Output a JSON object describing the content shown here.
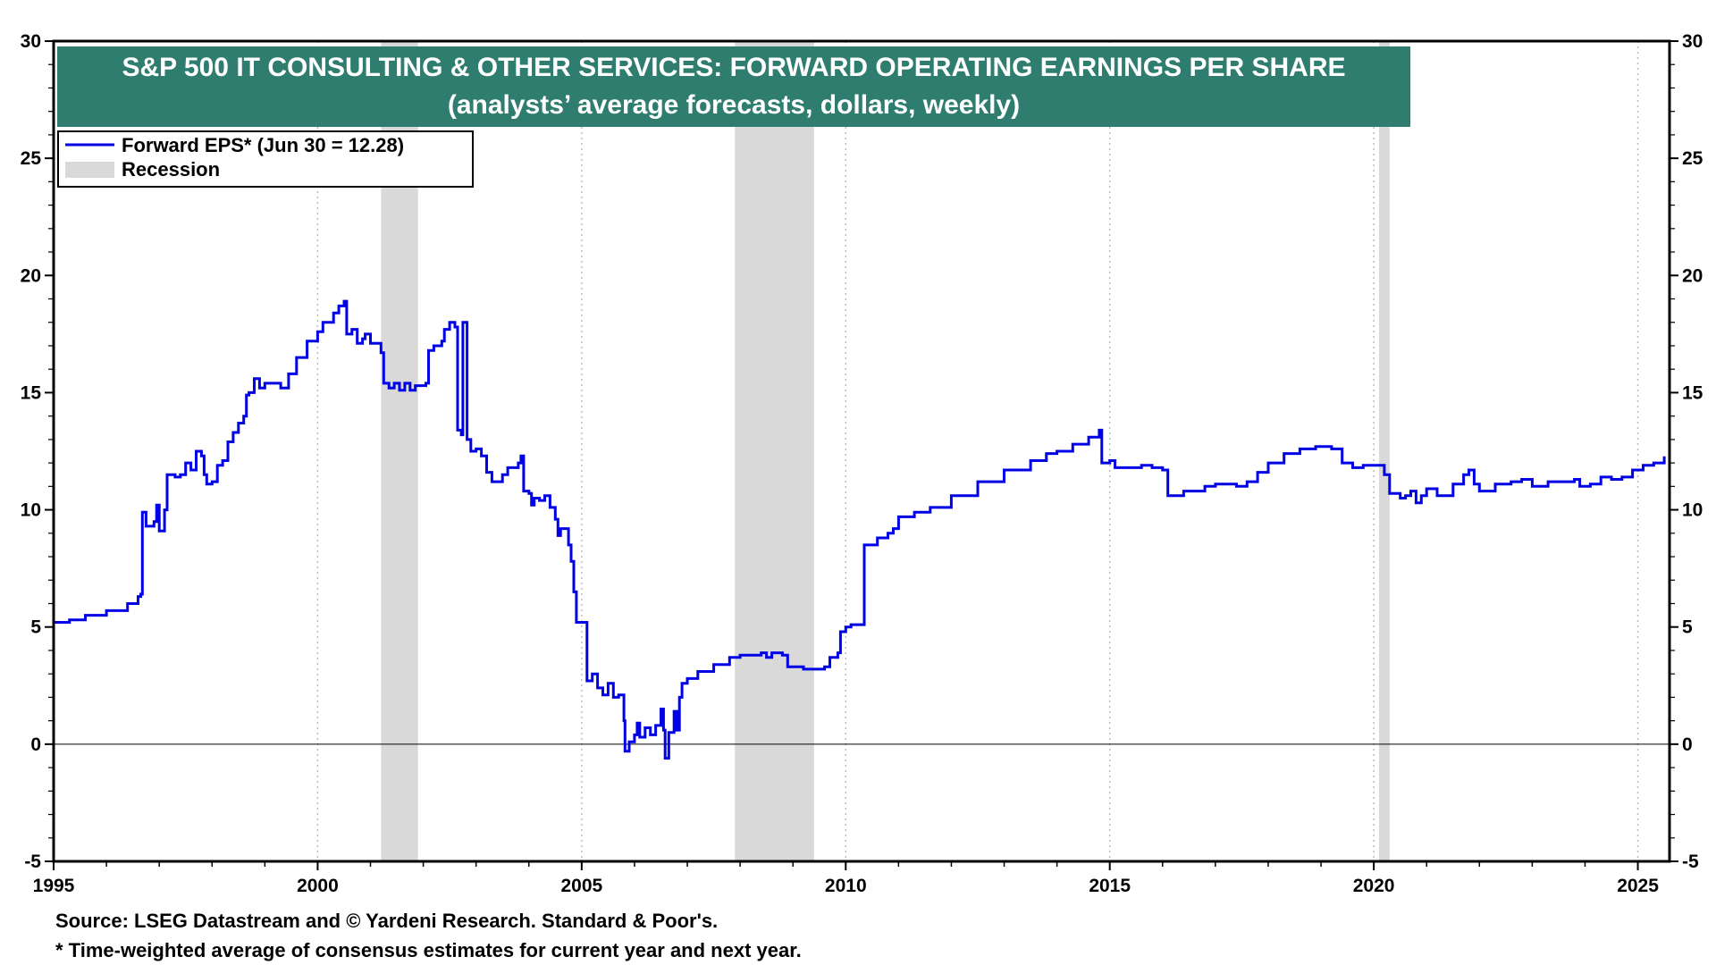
{
  "colors": {
    "title_background": "#2e7d6f",
    "title_text": "#ffffff",
    "series": "#0000e6",
    "recession": "#d9d9d9",
    "grid": "#bbbbbb"
  },
  "footnotes": {
    "source": "Source: LSEG Datastream and © Yardeni Research. Standard & Poor's.",
    "note": "* Time-weighted average of consensus estimates for current year and next year."
  },
  "chart_data": {
    "type": "line",
    "title": "S&P 500 IT CONSULTING & OTHER SERVICES: FORWARD OPERATING EARNINGS PER SHARE",
    "subtitle": "(analysts’ average forecasts, dollars, weekly)",
    "xlabel": "",
    "ylabel": "",
    "xlim": [
      1995,
      2025.6
    ],
    "ylim": [
      -5,
      30
    ],
    "x_ticks": [
      1995,
      2000,
      2005,
      2010,
      2015,
      2020,
      2025
    ],
    "y_ticks": [
      -5,
      0,
      5,
      10,
      15,
      20,
      25,
      30
    ],
    "grid": "vertical dotted",
    "reference_line": 0,
    "legend": {
      "placement": "top-left",
      "entries": [
        {
          "label": "Forward EPS* (Jun 30 = 12.28)",
          "kind": "line"
        },
        {
          "label": "Recession",
          "kind": "band"
        }
      ]
    },
    "recessions": [
      [
        2001.2,
        2001.9
      ],
      [
        2007.9,
        2009.4
      ],
      [
        2020.1,
        2020.3
      ]
    ],
    "series": [
      {
        "name": "Forward EPS* (Jun 30 = 12.28)",
        "points": [
          [
            1995.0,
            5.2
          ],
          [
            1995.3,
            5.3
          ],
          [
            1995.6,
            5.5
          ],
          [
            1996.0,
            5.7
          ],
          [
            1996.4,
            6.0
          ],
          [
            1996.6,
            6.3
          ],
          [
            1996.65,
            6.4
          ],
          [
            1996.68,
            9.9
          ],
          [
            1996.75,
            9.3
          ],
          [
            1996.9,
            9.5
          ],
          [
            1996.95,
            10.2
          ],
          [
            1997.0,
            9.1
          ],
          [
            1997.05,
            9.1
          ],
          [
            1997.1,
            10.0
          ],
          [
            1997.15,
            11.5
          ],
          [
            1997.3,
            11.4
          ],
          [
            1997.4,
            11.5
          ],
          [
            1997.5,
            12.0
          ],
          [
            1997.6,
            11.7
          ],
          [
            1997.7,
            12.5
          ],
          [
            1997.8,
            12.3
          ],
          [
            1997.85,
            11.5
          ],
          [
            1997.9,
            11.1
          ],
          [
            1998.0,
            11.2
          ],
          [
            1998.1,
            11.9
          ],
          [
            1998.2,
            12.1
          ],
          [
            1998.3,
            12.9
          ],
          [
            1998.4,
            13.3
          ],
          [
            1998.5,
            13.7
          ],
          [
            1998.6,
            14.0
          ],
          [
            1998.65,
            14.9
          ],
          [
            1998.7,
            15.0
          ],
          [
            1998.8,
            15.6
          ],
          [
            1998.9,
            15.2
          ],
          [
            1999.0,
            15.4
          ],
          [
            1999.2,
            15.4
          ],
          [
            1999.3,
            15.2
          ],
          [
            1999.45,
            15.8
          ],
          [
            1999.6,
            16.5
          ],
          [
            1999.8,
            17.2
          ],
          [
            2000.0,
            17.6
          ],
          [
            2000.1,
            18.0
          ],
          [
            2000.3,
            18.4
          ],
          [
            2000.4,
            18.7
          ],
          [
            2000.5,
            18.9
          ],
          [
            2000.55,
            17.5
          ],
          [
            2000.65,
            17.7
          ],
          [
            2000.75,
            17.1
          ],
          [
            2000.85,
            17.3
          ],
          [
            2000.9,
            17.5
          ],
          [
            2001.0,
            17.1
          ],
          [
            2001.2,
            16.7
          ],
          [
            2001.25,
            15.4
          ],
          [
            2001.35,
            15.2
          ],
          [
            2001.45,
            15.4
          ],
          [
            2001.55,
            15.1
          ],
          [
            2001.65,
            15.4
          ],
          [
            2001.75,
            15.1
          ],
          [
            2001.85,
            15.3
          ],
          [
            2002.0,
            15.3
          ],
          [
            2002.05,
            15.4
          ],
          [
            2002.1,
            16.8
          ],
          [
            2002.2,
            17.0
          ],
          [
            2002.35,
            17.2
          ],
          [
            2002.4,
            17.7
          ],
          [
            2002.5,
            18.0
          ],
          [
            2002.6,
            17.8
          ],
          [
            2002.65,
            13.4
          ],
          [
            2002.72,
            13.2
          ],
          [
            2002.75,
            18.0
          ],
          [
            2002.8,
            18.0
          ],
          [
            2002.83,
            13.0
          ],
          [
            2002.9,
            12.5
          ],
          [
            2003.0,
            12.6
          ],
          [
            2003.1,
            12.3
          ],
          [
            2003.2,
            11.6
          ],
          [
            2003.3,
            11.2
          ],
          [
            2003.5,
            11.5
          ],
          [
            2003.6,
            11.8
          ],
          [
            2003.8,
            12.0
          ],
          [
            2003.85,
            12.3
          ],
          [
            2003.9,
            10.8
          ],
          [
            2004.0,
            10.7
          ],
          [
            2004.05,
            10.2
          ],
          [
            2004.1,
            10.5
          ],
          [
            2004.2,
            10.4
          ],
          [
            2004.3,
            10.6
          ],
          [
            2004.4,
            10.1
          ],
          [
            2004.5,
            9.6
          ],
          [
            2004.55,
            8.9
          ],
          [
            2004.6,
            9.2
          ],
          [
            2004.75,
            8.5
          ],
          [
            2004.8,
            7.8
          ],
          [
            2004.85,
            6.5
          ],
          [
            2004.9,
            5.2
          ],
          [
            2005.05,
            5.2
          ],
          [
            2005.1,
            2.7
          ],
          [
            2005.2,
            3.0
          ],
          [
            2005.3,
            2.4
          ],
          [
            2005.4,
            2.1
          ],
          [
            2005.5,
            2.6
          ],
          [
            2005.6,
            2.0
          ],
          [
            2005.7,
            2.1
          ],
          [
            2005.8,
            1.0
          ],
          [
            2005.82,
            -0.3
          ],
          [
            2005.9,
            0.1
          ],
          [
            2006.0,
            0.4
          ],
          [
            2006.05,
            0.9
          ],
          [
            2006.1,
            0.3
          ],
          [
            2006.2,
            0.7
          ],
          [
            2006.3,
            0.4
          ],
          [
            2006.4,
            0.8
          ],
          [
            2006.5,
            1.5
          ],
          [
            2006.55,
            0.6
          ],
          [
            2006.58,
            -0.6
          ],
          [
            2006.65,
            0.5
          ],
          [
            2006.75,
            1.4
          ],
          [
            2006.8,
            0.6
          ],
          [
            2006.85,
            2.0
          ],
          [
            2006.9,
            2.6
          ],
          [
            2007.0,
            2.8
          ],
          [
            2007.2,
            3.1
          ],
          [
            2007.5,
            3.4
          ],
          [
            2007.8,
            3.7
          ],
          [
            2008.0,
            3.8
          ],
          [
            2008.2,
            3.8
          ],
          [
            2008.4,
            3.9
          ],
          [
            2008.5,
            3.7
          ],
          [
            2008.6,
            3.9
          ],
          [
            2008.8,
            3.8
          ],
          [
            2008.9,
            3.3
          ],
          [
            2009.1,
            3.3
          ],
          [
            2009.2,
            3.2
          ],
          [
            2009.6,
            3.3
          ],
          [
            2009.7,
            3.7
          ],
          [
            2009.85,
            3.9
          ],
          [
            2009.9,
            4.8
          ],
          [
            2010.0,
            5.0
          ],
          [
            2010.1,
            5.1
          ],
          [
            2010.3,
            5.1
          ],
          [
            2010.35,
            8.5
          ],
          [
            2010.6,
            8.8
          ],
          [
            2010.8,
            9.0
          ],
          [
            2010.9,
            9.2
          ],
          [
            2011.0,
            9.7
          ],
          [
            2011.3,
            9.9
          ],
          [
            2011.6,
            10.1
          ],
          [
            2012.0,
            10.6
          ],
          [
            2012.5,
            11.2
          ],
          [
            2013.0,
            11.7
          ],
          [
            2013.5,
            12.1
          ],
          [
            2013.8,
            12.4
          ],
          [
            2014.0,
            12.5
          ],
          [
            2014.3,
            12.8
          ],
          [
            2014.6,
            13.1
          ],
          [
            2014.8,
            13.4
          ],
          [
            2014.85,
            12.0
          ],
          [
            2015.0,
            12.1
          ],
          [
            2015.1,
            11.8
          ],
          [
            2015.4,
            11.8
          ],
          [
            2015.6,
            11.9
          ],
          [
            2015.8,
            11.8
          ],
          [
            2016.0,
            11.7
          ],
          [
            2016.1,
            10.6
          ],
          [
            2016.4,
            10.8
          ],
          [
            2016.8,
            11.0
          ],
          [
            2017.0,
            11.1
          ],
          [
            2017.4,
            11.0
          ],
          [
            2017.6,
            11.2
          ],
          [
            2017.8,
            11.6
          ],
          [
            2018.0,
            12.0
          ],
          [
            2018.3,
            12.4
          ],
          [
            2018.6,
            12.6
          ],
          [
            2018.9,
            12.7
          ],
          [
            2019.2,
            12.6
          ],
          [
            2019.4,
            12.0
          ],
          [
            2019.6,
            11.8
          ],
          [
            2019.8,
            11.9
          ],
          [
            2020.1,
            11.9
          ],
          [
            2020.2,
            11.5
          ],
          [
            2020.3,
            10.7
          ],
          [
            2020.5,
            10.5
          ],
          [
            2020.6,
            10.6
          ],
          [
            2020.7,
            10.8
          ],
          [
            2020.8,
            10.3
          ],
          [
            2020.9,
            10.6
          ],
          [
            2021.0,
            10.9
          ],
          [
            2021.2,
            10.6
          ],
          [
            2021.5,
            11.1
          ],
          [
            2021.7,
            11.5
          ],
          [
            2021.8,
            11.7
          ],
          [
            2021.9,
            11.1
          ],
          [
            2022.0,
            10.8
          ],
          [
            2022.3,
            11.1
          ],
          [
            2022.6,
            11.2
          ],
          [
            2022.8,
            11.3
          ],
          [
            2023.0,
            11.0
          ],
          [
            2023.3,
            11.2
          ],
          [
            2023.6,
            11.2
          ],
          [
            2023.8,
            11.3
          ],
          [
            2023.9,
            11.0
          ],
          [
            2024.1,
            11.1
          ],
          [
            2024.3,
            11.4
          ],
          [
            2024.5,
            11.3
          ],
          [
            2024.7,
            11.4
          ],
          [
            2024.9,
            11.7
          ],
          [
            2025.1,
            11.9
          ],
          [
            2025.3,
            12.0
          ],
          [
            2025.5,
            12.28
          ]
        ]
      }
    ]
  }
}
